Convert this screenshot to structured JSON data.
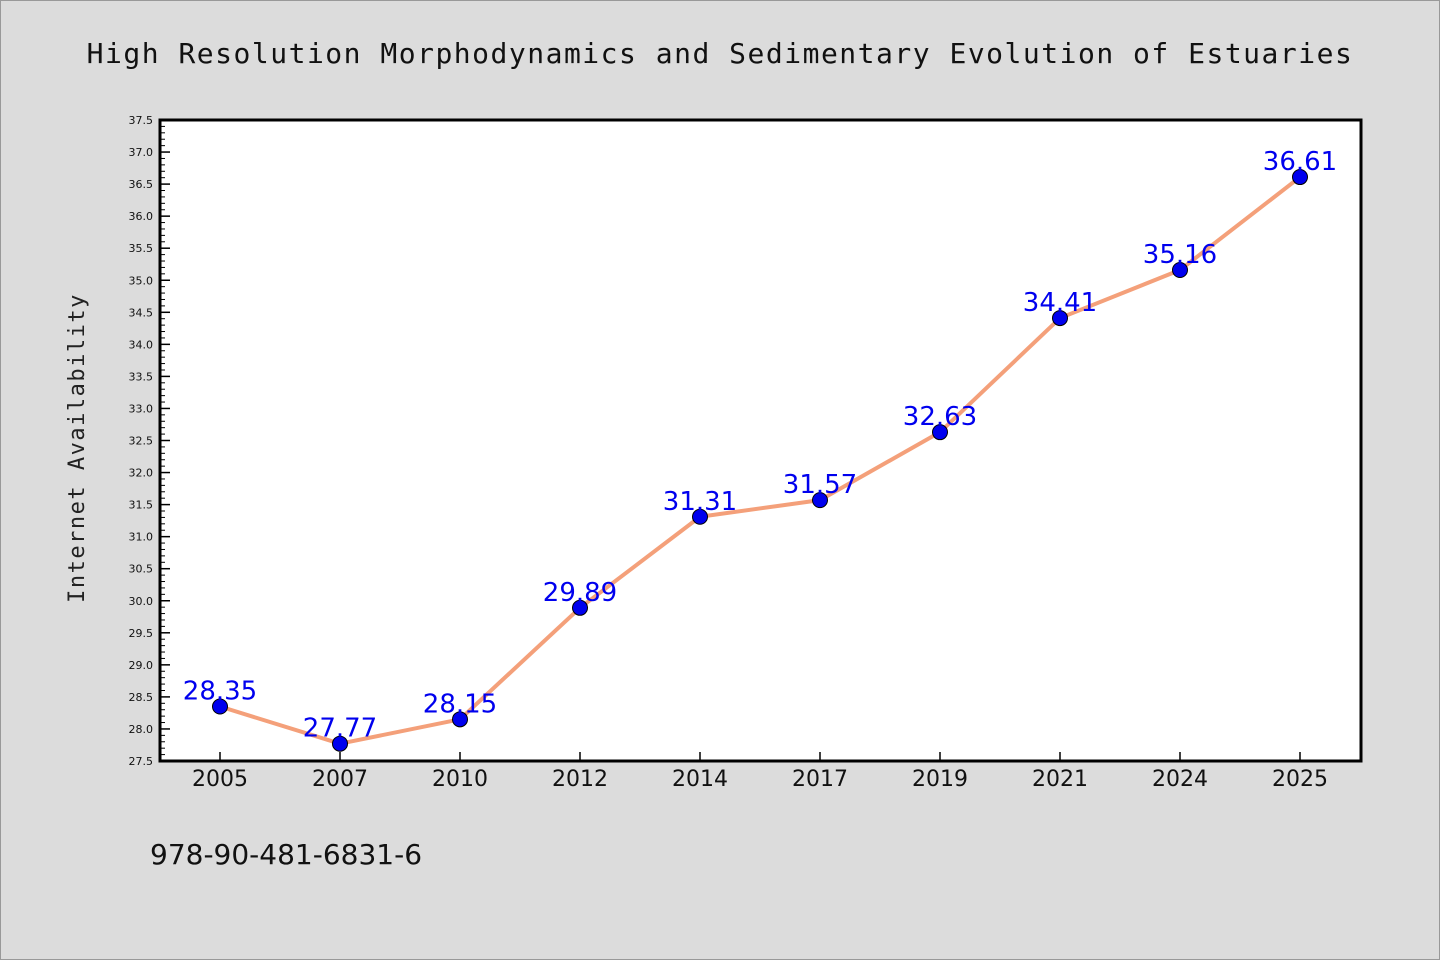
{
  "chart_data": {
    "type": "line",
    "title": "High Resolution Morphodynamics and Sedimentary Evolution of Estuaries",
    "xlabel": "",
    "ylabel": "Internet Availability",
    "categories": [
      "2005",
      "2007",
      "2010",
      "2012",
      "2014",
      "2017",
      "2019",
      "2021",
      "2024",
      "2025"
    ],
    "series": [
      {
        "values": [
          28.35,
          27.77,
          28.15,
          29.89,
          31.31,
          31.57,
          32.63,
          34.41,
          35.16,
          36.61
        ]
      }
    ],
    "data_labels": [
      "28.35",
      "27.77",
      "28.15",
      "29.89",
      "31.31",
      "31.57",
      "32.63",
      "34.41",
      "35.16",
      "36.61"
    ],
    "ylim": [
      27.5,
      37.5
    ],
    "ytick_step": 0.5,
    "grid": false,
    "line_color": "#f4a07a",
    "marker_color": "#0000ee",
    "label_color": "#0000ee"
  },
  "footer": {
    "isbn": "978-90-481-6831-6"
  }
}
